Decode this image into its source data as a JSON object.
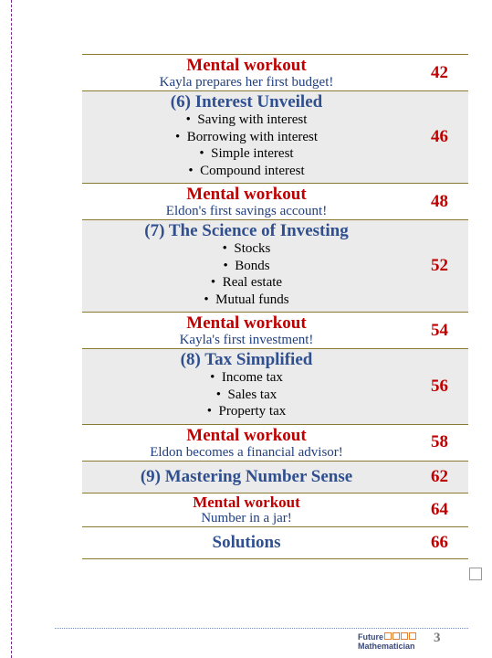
{
  "rows": [
    {
      "title": "Mental workout",
      "subtitle": "Kayla prepares her first budget!",
      "page": "42",
      "color": "#c00000",
      "background": "#ffffff"
    },
    {
      "title": "(6)  Interest Unveiled",
      "bullets": [
        "Saving with interest",
        "Borrowing with interest",
        "Simple interest",
        "Compound interest"
      ],
      "page": "46",
      "color": "#2f4f8f",
      "background": "#ebebeb"
    },
    {
      "title": "Mental workout",
      "subtitle": "Eldon's first savings account!",
      "page": "48",
      "color": "#c00000",
      "background": "#ffffff"
    },
    {
      "title": "(7)  The Science of Investing",
      "bullets": [
        "Stocks",
        "Bonds",
        "Real estate",
        "Mutual funds"
      ],
      "page": "52",
      "color": "#2f4f8f",
      "background": "#ebebeb"
    },
    {
      "title": "Mental workout",
      "subtitle": "Kayla's first investment!",
      "page": "54",
      "color": "#c00000",
      "background": "#ffffff"
    },
    {
      "title": "(8)  Tax Simplified",
      "bullets": [
        "Income tax",
        "Sales tax",
        "Property tax"
      ],
      "page": "56",
      "color": "#2f4f8f",
      "background": "#ebebeb"
    },
    {
      "title": "Mental workout",
      "subtitle": "Eldon becomes a financial advisor!",
      "page": "58",
      "color": "#c00000",
      "background": "#ffffff"
    },
    {
      "title": "(9) Mastering Number Sense",
      "page": "62",
      "color": "#2f4f8f",
      "background": "#ebebeb"
    },
    {
      "title": "Mental workout",
      "subtitle": "Number in a jar!",
      "page": "64",
      "color": "#c00000",
      "background": "#ffffff"
    },
    {
      "title": "Solutions",
      "page": "66",
      "color": "#2f4f8f",
      "background": "#ffffff"
    }
  ],
  "footer": {
    "logo_top": "Future",
    "logo_bottom": "Mathematician",
    "page_number": "3"
  }
}
